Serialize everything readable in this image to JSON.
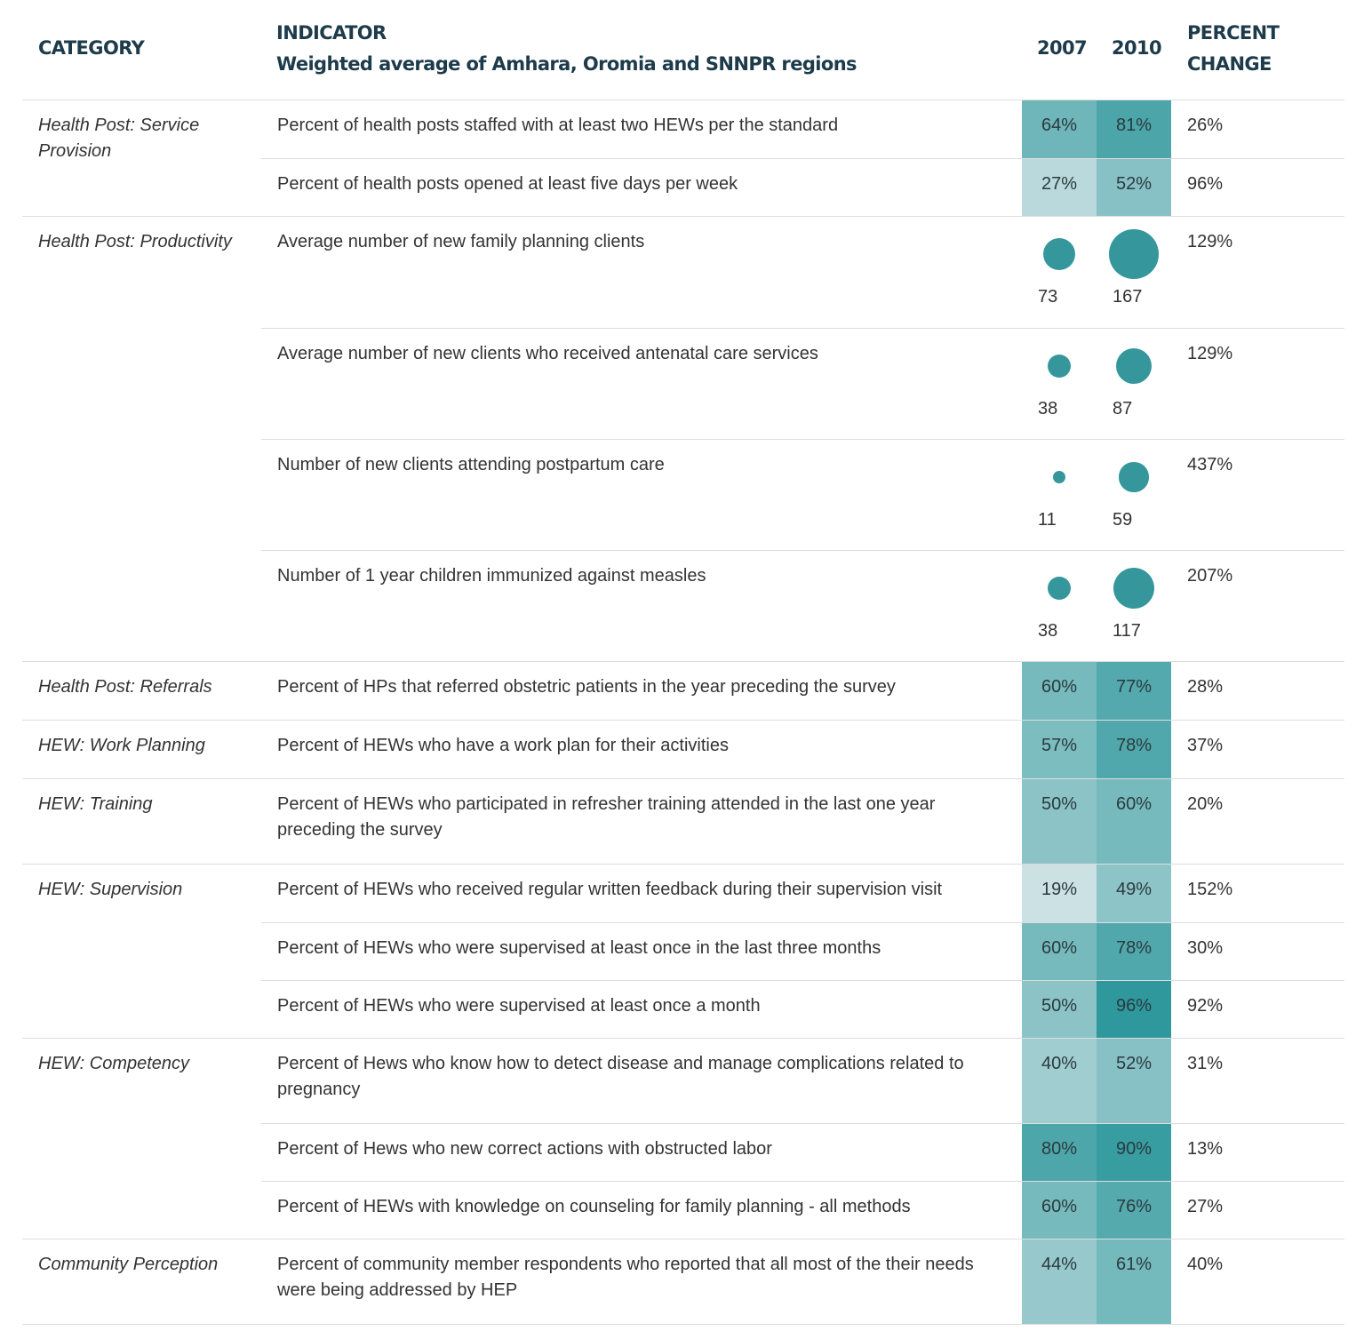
{
  "header": {
    "category": "CATEGORY",
    "indicator": "INDICATOR",
    "indicator_sub": "Weighted average of Amhara, Oromia and SNNPR regions",
    "y2007": "2007",
    "y2010": "2010",
    "change_line1": "PERCENT",
    "change_line2": "CHANGE"
  },
  "colors": {
    "header_text": "#1d3b4a",
    "scale_low": "#d3e5e8",
    "scale_high": "#2e989c",
    "bubble": "#35979c"
  },
  "chart_data": {
    "type": "table",
    "columns": [
      "CATEGORY",
      "INDICATOR",
      "2007",
      "2010",
      "PERCENT CHANGE"
    ],
    "categories": [
      {
        "name": "Health Post: Service Provision",
        "rows": [
          {
            "indicator": "Percent of health posts staffed with at least two HEWs per the standard",
            "kind": "percent",
            "v2007": 64,
            "v2010": 81,
            "label2007": "64%",
            "label2010": "81%",
            "change": "26%"
          },
          {
            "indicator": "Percent of health posts opened at least five days per week",
            "kind": "percent",
            "v2007": 27,
            "v2010": 52,
            "label2007": "27%",
            "label2010": "52%",
            "change": "96%"
          }
        ]
      },
      {
        "name": "Health Post: Productivity",
        "rows": [
          {
            "indicator": "Average number of new family planning clients",
            "kind": "bubble",
            "v2007": 73,
            "v2010": 167,
            "label2007": "73",
            "label2010": "167",
            "change": "129%"
          },
          {
            "indicator": "Average number of new clients who received antenatal care services",
            "kind": "bubble",
            "v2007": 38,
            "v2010": 87,
            "label2007": "38",
            "label2010": "87",
            "change": "129%"
          },
          {
            "indicator": "Number of new clients attending postpartum care",
            "kind": "bubble",
            "v2007": 11,
            "v2010": 59,
            "label2007": "11",
            "label2010": "59",
            "change": "437%"
          },
          {
            "indicator": "Number of 1 year children immunized against measles",
            "kind": "bubble",
            "v2007": 38,
            "v2010": 117,
            "label2007": "38",
            "label2010": "117",
            "change": "207%"
          }
        ]
      },
      {
        "name": "Health Post: Referrals",
        "rows": [
          {
            "indicator": "Percent of HPs that referred obstetric patients in the year preceding the survey",
            "kind": "percent",
            "v2007": 60,
            "v2010": 77,
            "label2007": "60%",
            "label2010": "77%",
            "change": "28%"
          }
        ]
      },
      {
        "name": "HEW: Work Planning",
        "rows": [
          {
            "indicator": "Percent of HEWs who have a work plan for their activities",
            "kind": "percent",
            "v2007": 57,
            "v2010": 78,
            "label2007": "57%",
            "label2010": "78%",
            "change": "37%"
          }
        ]
      },
      {
        "name": "HEW: Training",
        "rows": [
          {
            "indicator": "Percent of HEWs who participated in refresher training attended in the last one year preceding the survey",
            "kind": "percent",
            "v2007": 50,
            "v2010": 60,
            "label2007": "50%",
            "label2010": "60%",
            "change": "20%"
          }
        ]
      },
      {
        "name": "HEW: Supervision",
        "rows": [
          {
            "indicator": "Percent of HEWs who received regular written feedback during their supervision visit",
            "kind": "percent",
            "v2007": 19,
            "v2010": 49,
            "label2007": "19%",
            "label2010": "49%",
            "change": "152%"
          },
          {
            "indicator": "Percent of HEWs who were supervised at least once in the last three months",
            "kind": "percent",
            "v2007": 60,
            "v2010": 78,
            "label2007": "60%",
            "label2010": "78%",
            "change": "30%"
          },
          {
            "indicator": "Percent of HEWs who were supervised at least once a month",
            "kind": "percent",
            "v2007": 50,
            "v2010": 96,
            "label2007": "50%",
            "label2010": "96%",
            "change": "92%"
          }
        ]
      },
      {
        "name": "HEW: Competency",
        "rows": [
          {
            "indicator": "Percent of Hews who know how to detect disease and manage complications related to pregnancy",
            "kind": "percent",
            "v2007": 40,
            "v2010": 52,
            "label2007": "40%",
            "label2010": "52%",
            "change": "31%"
          },
          {
            "indicator": "Percent of Hews who new correct actions with obstructed labor",
            "kind": "percent",
            "v2007": 80,
            "v2010": 90,
            "label2007": "80%",
            "label2010": "90%",
            "change": "13%"
          },
          {
            "indicator": "Percent of HEWs with knowledge on counseling for family planning - all methods",
            "kind": "percent",
            "v2007": 60,
            "v2010": 76,
            "label2007": "60%",
            "label2010": "76%",
            "change": "27%"
          }
        ]
      },
      {
        "name": "Community Perception",
        "rows": [
          {
            "indicator": "Percent of community member respondents who reported that all most of the their needs were being addressed by HEP",
            "kind": "percent",
            "v2007": 44,
            "v2010": 61,
            "label2007": "44%",
            "label2010": "61%",
            "change": "40%"
          }
        ]
      }
    ]
  }
}
